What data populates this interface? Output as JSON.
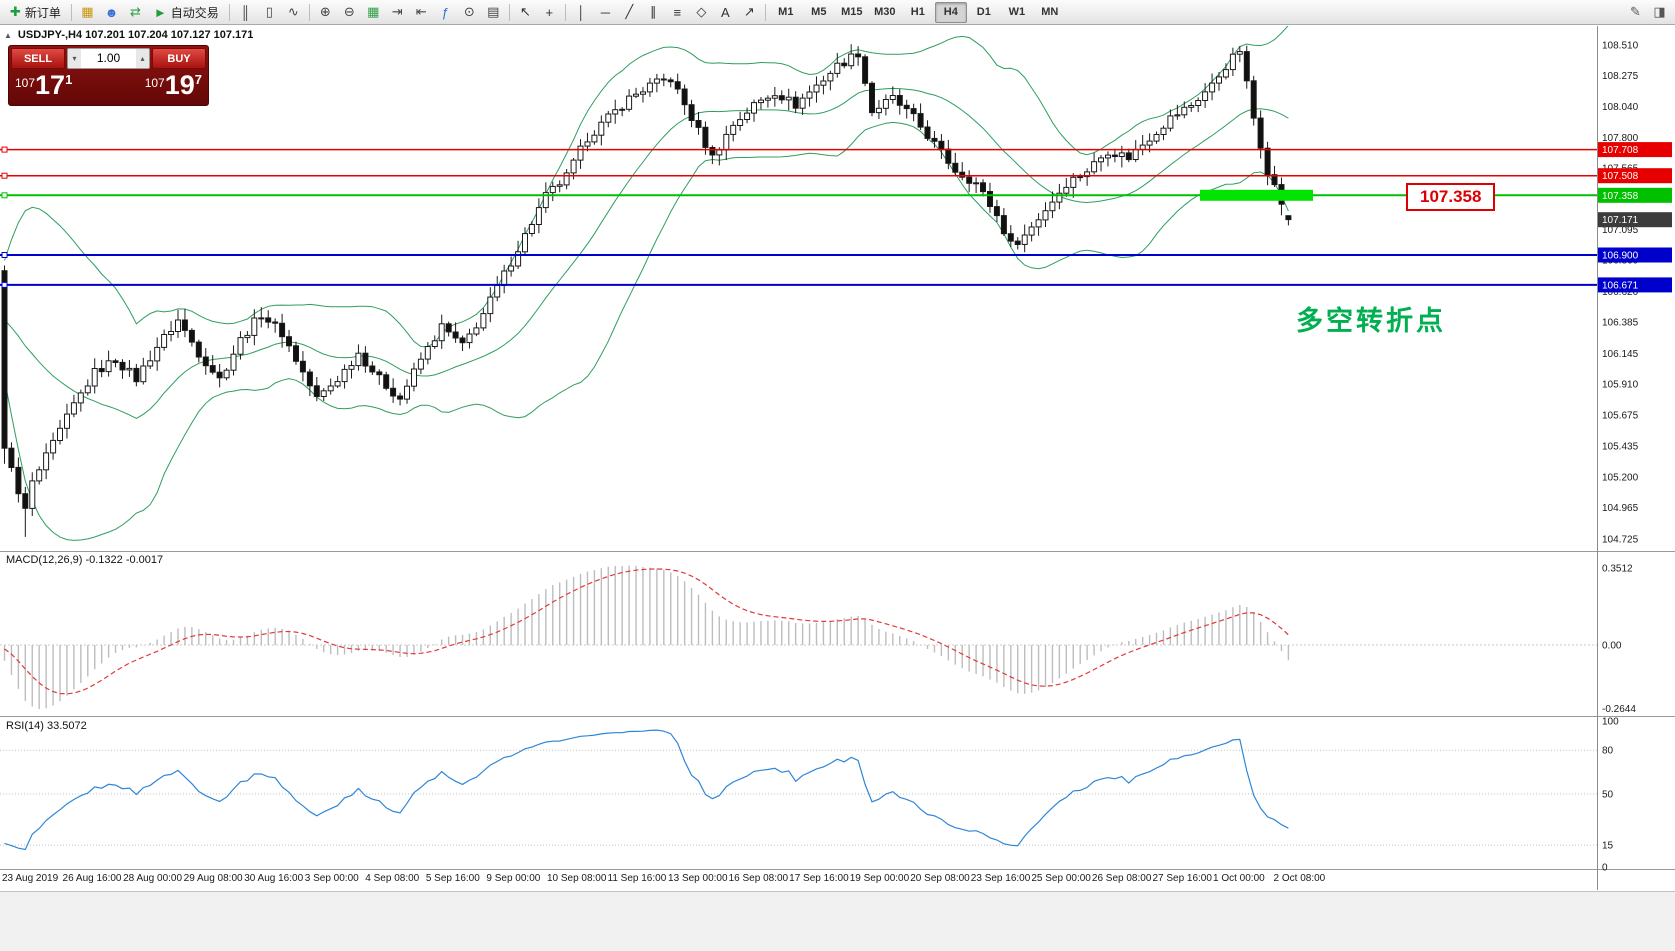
{
  "colors": {
    "bull": "#ffffff",
    "bear": "#111111",
    "bands": "#2e9e5e",
    "macd_hist": "#bdbdbd",
    "macd_signal": "#e03a3a",
    "rsi_line": "#2f86d6",
    "highlight": "#00e400",
    "annotation_green": "#00b050",
    "callout_red": "#dd0000",
    "tag_current": "#3c3c3c",
    "line_red": "#e60000",
    "line_blue": "#0000cc",
    "line_green": "#00c000"
  },
  "toolbar": {
    "timeframes": [
      "M1",
      "M5",
      "M15",
      "M30",
      "H1",
      "H4",
      "D1",
      "W1",
      "MN"
    ],
    "active_timeframe": "H4",
    "items": [
      {
        "type": "button",
        "name": "new-order-button",
        "icon_name": "new-order-icon",
        "glyph": "✚",
        "glyph_color": "#1f9d3a",
        "label": "新订单"
      },
      {
        "type": "sep"
      },
      {
        "type": "icon",
        "name": "charts-window-icon",
        "glyph": "▦",
        "color": "#c8960c"
      },
      {
        "type": "icon",
        "name": "market-watch-icon",
        "glyph": "☻",
        "color": "#3a6fd8"
      },
      {
        "type": "icon",
        "name": "refresh-icon",
        "glyph": "⇄",
        "color": "#2f9e44"
      },
      {
        "type": "button",
        "name": "autotrading-button",
        "icon_name": "autotrading-play-icon",
        "glyph": "►",
        "glyph_color": "#1f9d3a",
        "label": "自动交易"
      },
      {
        "type": "sep"
      },
      {
        "type": "icon",
        "name": "bar-chart-type-icon",
        "glyph": "║",
        "color": "#444444"
      },
      {
        "type": "icon",
        "name": "candlestick-chart-type-icon",
        "glyph": "▯",
        "color": "#444444"
      },
      {
        "type": "icon",
        "name": "line-chart-type-icon",
        "glyph": "∿",
        "color": "#444444"
      },
      {
        "type": "sep"
      },
      {
        "type": "icon",
        "name": "zoom-in-icon",
        "glyph": "⊕",
        "color": "#444444"
      },
      {
        "type": "icon",
        "name": "zoom-out-icon",
        "glyph": "⊖",
        "color": "#444444"
      },
      {
        "type": "icon",
        "name": "grid-icon",
        "glyph": "▦",
        "color": "#2f9e44"
      },
      {
        "type": "icon",
        "name": "auto-scroll-icon",
        "glyph": "⇥",
        "color": "#444444"
      },
      {
        "type": "icon",
        "name": "chart-shift-icon",
        "glyph": "⇤",
        "color": "#444444"
      },
      {
        "type": "icon",
        "name": "indicators-icon",
        "glyph": "ƒ",
        "color": "#2f6fd8"
      },
      {
        "type": "icon",
        "name": "period-icon",
        "glyph": "⊙",
        "color": "#444444"
      },
      {
        "type": "icon",
        "name": "templates-icon",
        "glyph": "▤",
        "color": "#444444"
      },
      {
        "type": "sep"
      },
      {
        "type": "icon",
        "name": "cursor-icon",
        "glyph": "↖",
        "color": "#333333"
      },
      {
        "type": "icon",
        "name": "crosshair-icon",
        "glyph": "+",
        "color": "#333333"
      },
      {
        "type": "sep"
      },
      {
        "type": "icon",
        "name": "vertical-line-icon",
        "glyph": "│",
        "color": "#333333"
      },
      {
        "type": "icon",
        "name": "horizontal-line-icon",
        "glyph": "─",
        "color": "#333333"
      },
      {
        "type": "icon",
        "name": "trendline-icon",
        "glyph": "╱",
        "color": "#333333"
      },
      {
        "type": "icon",
        "name": "equidistant-channel-icon",
        "glyph": "∥",
        "color": "#333333"
      },
      {
        "type": "icon",
        "name": "fibonacci-icon",
        "glyph": "≡",
        "color": "#333333"
      },
      {
        "type": "icon",
        "name": "shapes-icon",
        "glyph": "◇",
        "color": "#333333"
      },
      {
        "type": "icon",
        "name": "text-label-icon",
        "glyph": "A",
        "color": "#333333"
      },
      {
        "type": "icon",
        "name": "arrow-objects-icon",
        "glyph": "↗",
        "color": "#333333"
      },
      {
        "type": "sep"
      },
      {
        "type": "tf-group"
      },
      {
        "type": "spacer"
      },
      {
        "type": "icon",
        "name": "edit-toolbar-icon",
        "glyph": "✎",
        "color": "#555555"
      },
      {
        "type": "icon",
        "name": "window-layout-icon",
        "glyph": "◨",
        "color": "#555555"
      }
    ]
  },
  "chart": {
    "symbol_line": "USDJPY-,H4 107.201 107.204 107.127 107.171",
    "annotation": "多空转折点",
    "price_label_box": "107.358",
    "current_price": {
      "value": "107.171"
    },
    "hlines": [
      {
        "price": 107.708,
        "color": "#e60000",
        "tag": "107.708",
        "width": 1.5
      },
      {
        "price": 107.508,
        "color": "#e60000",
        "tag": "107.508",
        "width": 1.5
      },
      {
        "price": 107.358,
        "color": "#00c000",
        "tag": "107.358",
        "width": 2,
        "highlight": true
      },
      {
        "price": 106.9,
        "color": "#0000cc",
        "tag": "106.900",
        "width": 2
      },
      {
        "price": 106.671,
        "color": "#0000cc",
        "tag": "106.671",
        "width": 2
      }
    ],
    "axis_ticks": [
      "108.510",
      "108.275",
      "108.040",
      "107.800",
      "107.565",
      "107.330",
      "107.095",
      "106.860",
      "106.620",
      "106.385",
      "106.145",
      "105.910",
      "105.675",
      "105.435",
      "105.200",
      "104.965",
      "104.725"
    ]
  },
  "trade": {
    "sell_label": "SELL",
    "buy_label": "BUY",
    "volume": "1.00",
    "sell_price": {
      "prefix": "107",
      "big": "17",
      "sup": "1"
    },
    "buy_price": {
      "prefix": "107",
      "big": "19",
      "sup": "7"
    }
  },
  "macd": {
    "label": "MACD(12,26,9) -0.1322 -0.0017",
    "ticks": [
      "0.3512",
      "0.00",
      "-0.2644"
    ]
  },
  "rsi": {
    "label": "RSI(14) 33.5072",
    "ticks": [
      "100",
      "80",
      "50",
      "15",
      "0"
    ],
    "levels": [
      80,
      50,
      15
    ]
  },
  "time_axis": [
    "23 Aug 2019",
    "26 Aug 16:00",
    "28 Aug 00:00",
    "29 Aug 08:00",
    "30 Aug 16:00",
    "3 Sep 00:00",
    "4 Sep 08:00",
    "5 Sep 16:00",
    "9 Sep 00:00",
    "10 Sep 08:00",
    "11 Sep 16:00",
    "13 Sep 00:00",
    "16 Sep 08:00",
    "17 Sep 16:00",
    "19 Sep 00:00",
    "20 Sep 08:00",
    "23 Sep 16:00",
    "25 Sep 00:00",
    "26 Sep 08:00",
    "27 Sep 16:00",
    "1 Oct 00:00",
    "2 Oct 08:00"
  ],
  "chart_data": {
    "type": "candlestick",
    "symbol": "USDJPY-",
    "timeframe": "H4",
    "visible_price_range": [
      104.65,
      108.655
    ],
    "bar_count": 186,
    "first_candle": {
      "o": 106.78,
      "h": 106.82,
      "l": 105.3,
      "c": 105.42
    },
    "last_candle": {
      "o": 107.201,
      "h": 107.204,
      "l": 107.127,
      "c": 107.171
    },
    "forced_wicks": [
      {
        "i": 3,
        "low": 104.74
      },
      {
        "i": 123,
        "high": 108.5
      },
      {
        "i": 178,
        "high": 108.5
      }
    ],
    "price_anchors": [
      [
        0,
        105.42
      ],
      [
        1,
        105.3
      ],
      [
        2,
        105.05
      ],
      [
        3,
        104.95
      ],
      [
        4,
        105.15
      ],
      [
        6,
        105.35
      ],
      [
        8,
        105.55
      ],
      [
        10,
        105.75
      ],
      [
        13,
        106.0
      ],
      [
        16,
        106.1
      ],
      [
        19,
        105.95
      ],
      [
        22,
        106.2
      ],
      [
        25,
        106.4
      ],
      [
        28,
        106.15
      ],
      [
        31,
        105.95
      ],
      [
        34,
        106.25
      ],
      [
        37,
        106.45
      ],
      [
        40,
        106.3
      ],
      [
        43,
        106.0
      ],
      [
        45,
        105.8
      ],
      [
        48,
        105.95
      ],
      [
        51,
        106.15
      ],
      [
        54,
        105.95
      ],
      [
        57,
        105.8
      ],
      [
        60,
        106.1
      ],
      [
        63,
        106.35
      ],
      [
        66,
        106.2
      ],
      [
        69,
        106.45
      ],
      [
        72,
        106.75
      ],
      [
        75,
        107.05
      ],
      [
        78,
        107.35
      ],
      [
        81,
        107.5
      ],
      [
        84,
        107.8
      ],
      [
        87,
        107.95
      ],
      [
        90,
        108.1
      ],
      [
        93,
        108.2
      ],
      [
        96,
        108.25
      ],
      [
        99,
        107.95
      ],
      [
        102,
        107.65
      ],
      [
        105,
        107.9
      ],
      [
        108,
        108.05
      ],
      [
        111,
        108.15
      ],
      [
        114,
        108.05
      ],
      [
        117,
        108.2
      ],
      [
        120,
        108.35
      ],
      [
        123,
        108.45
      ],
      [
        125,
        108.0
      ],
      [
        128,
        108.1
      ],
      [
        131,
        107.95
      ],
      [
        134,
        107.75
      ],
      [
        137,
        107.55
      ],
      [
        140,
        107.45
      ],
      [
        143,
        107.2
      ],
      [
        145,
        106.98
      ],
      [
        147,
        107.05
      ],
      [
        150,
        107.25
      ],
      [
        153,
        107.45
      ],
      [
        156,
        107.55
      ],
      [
        159,
        107.7
      ],
      [
        162,
        107.65
      ],
      [
        165,
        107.8
      ],
      [
        168,
        107.95
      ],
      [
        171,
        108.05
      ],
      [
        174,
        108.2
      ],
      [
        176,
        108.35
      ],
      [
        178,
        108.47
      ],
      [
        180,
        107.95
      ],
      [
        182,
        107.55
      ],
      [
        184,
        107.3
      ],
      [
        185,
        107.17
      ]
    ],
    "indicators": {
      "bollinger": {
        "period": 20,
        "deviation": 2
      },
      "macd": {
        "fast": 12,
        "slow": 26,
        "signal": 9,
        "values_label": "-0.1322 -0.0017"
      },
      "rsi": {
        "period": 14,
        "value": "33.5072"
      }
    }
  }
}
